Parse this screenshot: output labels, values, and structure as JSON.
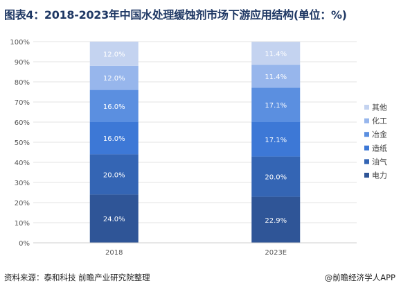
{
  "title": "图表4：2018-2023年中国水处理缓蚀剂市场下游应用结构(单位：%)",
  "source": "资料来源：泰和科技 前瞻产业研究院整理",
  "brand": "@前瞻经济学人APP",
  "chart_data": {
    "type": "bar",
    "stacked": true,
    "categories": [
      "2018",
      "2023E"
    ],
    "ylim": [
      0,
      100
    ],
    "yticks": [
      "0%",
      "10%",
      "20%",
      "30%",
      "40%",
      "50%",
      "60%",
      "70%",
      "80%",
      "90%",
      "100%"
    ],
    "legend_position": "right",
    "series": [
      {
        "name": "电力",
        "values": [
          24.0,
          22.9
        ],
        "labels": [
          "24.0%",
          "22.9%"
        ],
        "color": "#2f5597"
      },
      {
        "name": "油气",
        "values": [
          20.0,
          20.0
        ],
        "labels": [
          "20.0%",
          "20.0%"
        ],
        "color": "#3465b4"
      },
      {
        "name": "造纸",
        "values": [
          16.0,
          17.1
        ],
        "labels": [
          "16.0%",
          "17.1%"
        ],
        "color": "#3d78d6"
      },
      {
        "name": "冶金",
        "values": [
          16.0,
          17.1
        ],
        "labels": [
          "16.0%",
          "17.1%"
        ],
        "color": "#5b8fe0"
      },
      {
        "name": "化工",
        "values": [
          12.0,
          11.4
        ],
        "labels": [
          "12.0%",
          "11.4%"
        ],
        "color": "#97b6ec"
      },
      {
        "name": "其他",
        "values": [
          12.0,
          11.4
        ],
        "labels": [
          "12.0%",
          "11.4%"
        ],
        "color": "#c4d3f0"
      }
    ]
  }
}
